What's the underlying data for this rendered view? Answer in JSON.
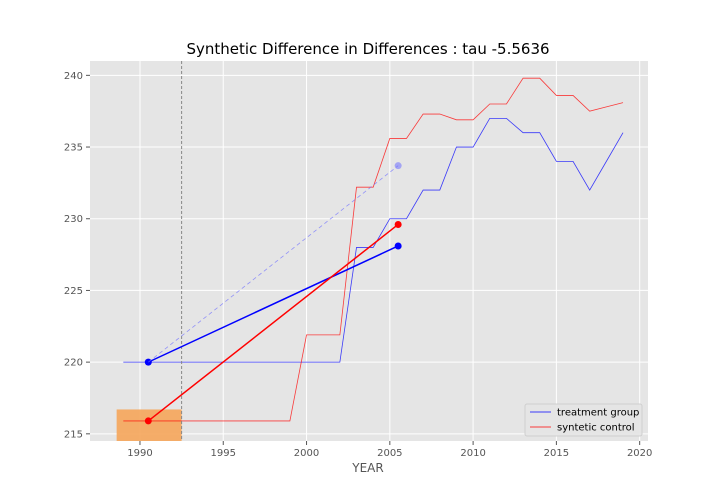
{
  "chart_data": {
    "type": "line",
    "title": "Synthetic Difference in Differences : tau -5.5636",
    "xlabel": "YEAR",
    "ylabel": "",
    "xlim": [
      1987,
      2020.5
    ],
    "ylim": [
      214.5,
      241
    ],
    "x_ticks": [
      1990,
      1995,
      2000,
      2005,
      2010,
      2015,
      2020
    ],
    "y_ticks": [
      215,
      220,
      225,
      230,
      235,
      240
    ],
    "grid": true,
    "legend_position": "lower-right",
    "colors": {
      "treatment": "#0000ff",
      "control": "#ff0000",
      "weights": "#f5a55a",
      "background": "#e5e5e5"
    },
    "treatment_period_start": 1992.5,
    "series": [
      {
        "name": "treatment group",
        "color": "#0000ff",
        "points": [
          [
            1989,
            220
          ],
          [
            1990,
            220
          ],
          [
            1991,
            220
          ],
          [
            1992,
            220
          ],
          [
            1993,
            220
          ],
          [
            1994,
            220
          ],
          [
            1995,
            220
          ],
          [
            1996,
            220
          ],
          [
            1997,
            220
          ],
          [
            1998,
            220
          ],
          [
            1999,
            220
          ],
          [
            2000,
            220
          ],
          [
            2001,
            220
          ],
          [
            2002,
            220
          ],
          [
            2003,
            228
          ],
          [
            2004,
            228
          ],
          [
            2005,
            230
          ],
          [
            2006,
            230
          ],
          [
            2007,
            232
          ],
          [
            2008,
            232
          ],
          [
            2009,
            235
          ],
          [
            2010,
            235
          ],
          [
            2011,
            237
          ],
          [
            2012,
            237
          ],
          [
            2013,
            236
          ],
          [
            2014,
            236
          ],
          [
            2015,
            234
          ],
          [
            2016,
            234
          ],
          [
            2017,
            232
          ],
          [
            2018,
            234
          ],
          [
            2019,
            236
          ]
        ]
      },
      {
        "name": "syntetic control",
        "color": "#ff0000",
        "points": [
          [
            1989,
            215.9
          ],
          [
            1990,
            215.9
          ],
          [
            1991,
            215.9
          ],
          [
            1992,
            215.9
          ],
          [
            1993,
            215.9
          ],
          [
            1994,
            215.9
          ],
          [
            1995,
            215.9
          ],
          [
            1996,
            215.9
          ],
          [
            1997,
            215.9
          ],
          [
            1998,
            215.9
          ],
          [
            1999,
            215.9
          ],
          [
            2000,
            221.9
          ],
          [
            2001,
            221.9
          ],
          [
            2002,
            221.9
          ],
          [
            2003,
            232.2
          ],
          [
            2004,
            232.2
          ],
          [
            2005,
            235.6
          ],
          [
            2006,
            235.6
          ],
          [
            2007,
            237.3
          ],
          [
            2008,
            237.3
          ],
          [
            2009,
            236.9
          ],
          [
            2010,
            236.9
          ],
          [
            2011,
            238
          ],
          [
            2012,
            238
          ],
          [
            2013,
            239.8
          ],
          [
            2014,
            239.8
          ],
          [
            2015,
            238.6
          ],
          [
            2016,
            238.6
          ],
          [
            2017,
            237.5
          ],
          [
            2018,
            237.8
          ],
          [
            2019,
            238.1
          ]
        ]
      }
    ],
    "did_segments": [
      {
        "role": "treatment",
        "color": "#0000ff",
        "from": [
          1990.5,
          220
        ],
        "to": [
          2005.5,
          228.1
        ]
      },
      {
        "role": "control",
        "color": "#ff0000",
        "from": [
          1990.5,
          215.9
        ],
        "to": [
          2005.5,
          229.6
        ]
      },
      {
        "role": "counterfactual",
        "color": "#6f6fff",
        "from": [
          1990.5,
          220
        ],
        "to": [
          2005.5,
          233.7
        ]
      }
    ],
    "weight_bars": [
      {
        "x0": 1988.6,
        "x1": 1992.5,
        "height": 2.2
      }
    ]
  }
}
